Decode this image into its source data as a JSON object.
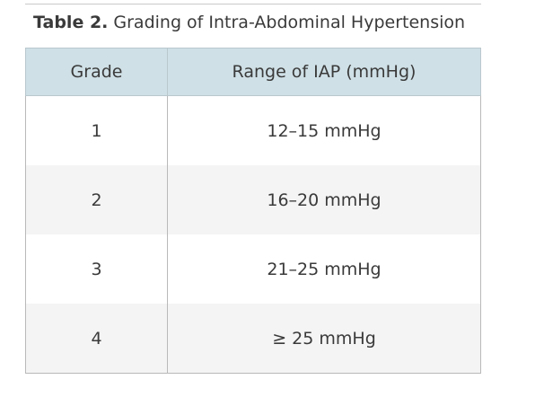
{
  "caption": {
    "label": "Table 2.",
    "title": "Grading of Intra-Abdominal Hypertension"
  },
  "table": {
    "headers": [
      "Grade",
      "Range of IAP (mmHg)"
    ],
    "rows": [
      {
        "grade": "1",
        "range": "12–15 mmHg"
      },
      {
        "grade": "2",
        "range": "16–20 mmHg"
      },
      {
        "grade": "3",
        "range": "21–25 mmHg"
      },
      {
        "grade": "4",
        "range": "≥ 25 mmHg"
      }
    ]
  },
  "colors": {
    "header_background": "#cfe0e6",
    "alternate_row_background": "#f4f4f4",
    "text": "#3a3a3a"
  }
}
